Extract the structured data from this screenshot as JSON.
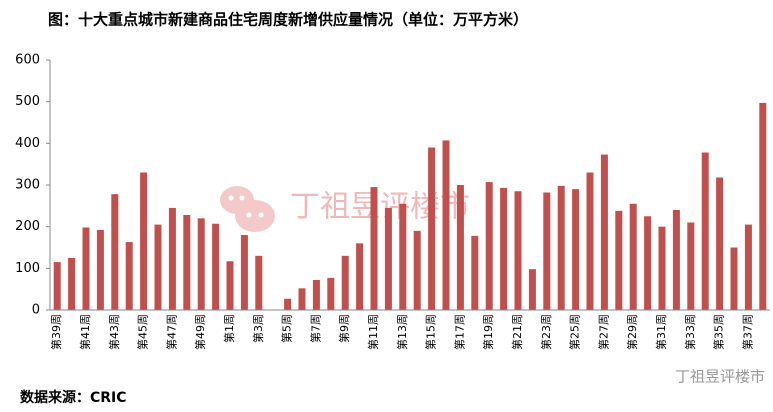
{
  "chart_data": {
    "type": "bar",
    "title": "图：十大重点城市新建商品住宅周度新增供应量情况（单位：万平方米）",
    "source": "数据来源：CRIC",
    "watermark": "丁祖昱评楼市",
    "categories": [
      "第39周",
      null,
      "第41周",
      null,
      "第43周",
      null,
      "第45周",
      null,
      "第47周",
      null,
      "第49周",
      null,
      "第1周",
      null,
      "第3周",
      null,
      "第5周",
      null,
      "第7周",
      null,
      "第9周",
      null,
      "第11周",
      null,
      "第13周",
      null,
      "第15周",
      null,
      "第17周",
      null,
      "第19周",
      null,
      "第21周",
      null,
      "第23周",
      null,
      "第25周",
      null,
      "第27周",
      null,
      "第29周",
      null,
      "第31周",
      null,
      "第33周",
      null,
      "第35周",
      null,
      "第37周",
      null
    ],
    "values": [
      115,
      125,
      198,
      192,
      278,
      163,
      330,
      205,
      245,
      228,
      220,
      207,
      117,
      180,
      130,
      0,
      27,
      52,
      72,
      77,
      130,
      160,
      295,
      245,
      255,
      190,
      390,
      407,
      300,
      178,
      307,
      293,
      285,
      98,
      282,
      298,
      290,
      330,
      373,
      238,
      255,
      225,
      200,
      240,
      210,
      378,
      318,
      150,
      205,
      497
    ],
    "color": "#c0504d",
    "ylim": [
      0,
      600
    ],
    "yticks": [
      0,
      100,
      200,
      300,
      400,
      500,
      600
    ],
    "grid": false
  }
}
